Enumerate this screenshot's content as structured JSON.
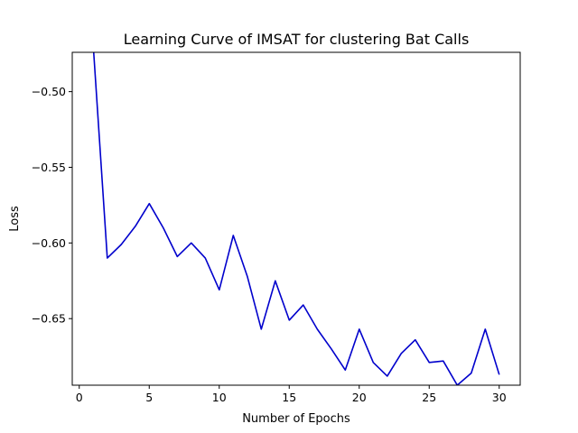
{
  "chart_data": {
    "type": "line",
    "title": "Learning Curve of IMSAT for clustering Bat Calls",
    "xlabel": "Number of Epochs",
    "ylabel": "Loss",
    "xlim": [
      -0.5,
      31.5
    ],
    "ylim": [
      -0.694,
      -0.474
    ],
    "xticks": [
      0,
      5,
      10,
      15,
      20,
      25,
      30
    ],
    "xtick_labels": [
      "0",
      "5",
      "10",
      "15",
      "20",
      "25",
      "30"
    ],
    "yticks": [
      -0.5,
      -0.55,
      -0.6,
      -0.65
    ],
    "ytick_labels": [
      "−0.50",
      "−0.55",
      "−0.60",
      "−0.65"
    ],
    "grid": false,
    "line_color": "#0000cc",
    "x": [
      1,
      2,
      3,
      4,
      5,
      6,
      7,
      8,
      9,
      10,
      11,
      12,
      13,
      14,
      15,
      16,
      17,
      18,
      19,
      20,
      21,
      22,
      23,
      24,
      25,
      26,
      27,
      28,
      29,
      30
    ],
    "y": [
      -0.47,
      -0.61,
      -0.601,
      -0.589,
      -0.574,
      -0.59,
      -0.609,
      -0.6,
      -0.61,
      -0.631,
      -0.595,
      -0.622,
      -0.657,
      -0.625,
      -0.651,
      -0.641,
      -0.657,
      -0.67,
      -0.684,
      -0.657,
      -0.679,
      -0.688,
      -0.673,
      -0.664,
      -0.679,
      -0.678,
      -0.694,
      -0.686,
      -0.657,
      -0.687
    ]
  }
}
